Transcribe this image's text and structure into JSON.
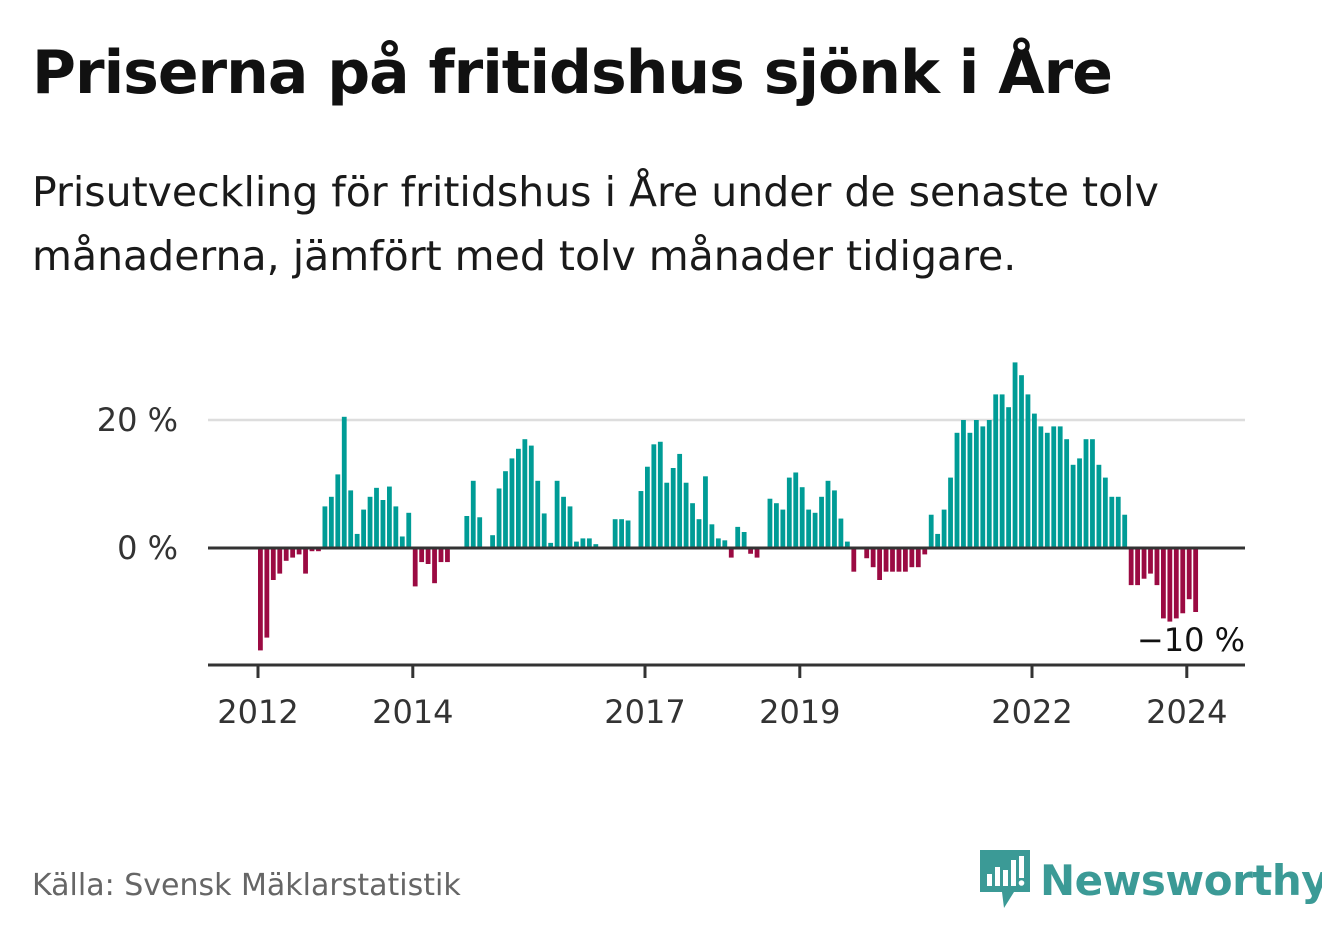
{
  "title": "Priserna på fritidshus sjönk i Åre",
  "subtitle": "Prisutveckling för fritidshus i Åre under de senaste tolv månaderna, jämfört med tolv månader tidigare.",
  "source": "Källa: Svensk Mäklarstatistik",
  "brand": "Newsworthy",
  "colors": {
    "positive": "#009c96",
    "negative": "#9b0a42",
    "grid": "#dddddd",
    "axis": "#333333",
    "brand": "#3b9a96"
  },
  "chart_data": {
    "type": "bar",
    "title": "Priserna på fritidshus sjönk i Åre",
    "xlabel": "",
    "ylabel": "",
    "ylim": [
      -18,
      30
    ],
    "y_ticks": [
      {
        "value": 0,
        "label": "0 %"
      },
      {
        "value": 20,
        "label": "20 %"
      }
    ],
    "x_ticks": [
      "2012",
      "2014",
      "2017",
      "2019",
      "2022",
      "2024"
    ],
    "start": {
      "year": 2012,
      "month": 1
    },
    "frequency": "monthly",
    "unit": "%",
    "last_value_label": "−10 %",
    "values": [
      -16,
      -14,
      -5,
      -4,
      -2,
      -1.5,
      -1,
      -4,
      -0.5,
      -0.5,
      6.5,
      8,
      11.5,
      20.5,
      9,
      2.2,
      6,
      8,
      9.4,
      7.5,
      9.6,
      6.5,
      1.8,
      5.5,
      -6,
      -2.2,
      -2.5,
      -5.5,
      -2.2,
      -2.2,
      0,
      0,
      5,
      10.5,
      4.8,
      0,
      2,
      9.3,
      12,
      14,
      15.5,
      17,
      16,
      10.5,
      5.4,
      0.8,
      10.5,
      8,
      6.5,
      1,
      1.5,
      1.5,
      0.6,
      0,
      0,
      4.5,
      4.5,
      4.3,
      0,
      8.9,
      12.7,
      16.2,
      16.6,
      10.2,
      12.5,
      14.7,
      10.2,
      7,
      4.5,
      11.2,
      3.7,
      1.5,
      1.2,
      -1.5,
      3.3,
      2.5,
      -0.9,
      -1.5,
      0,
      7.7,
      7,
      6,
      11,
      11.8,
      9.5,
      6,
      5.5,
      8,
      10.5,
      9,
      4.6,
      1,
      -3.7,
      0,
      -1.6,
      -3,
      -5,
      -3.7,
      -3.7,
      -3.7,
      -3.7,
      -3,
      -3,
      -1,
      5.2,
      2.2,
      6,
      11,
      18,
      20,
      18,
      20,
      19,
      20,
      24,
      24,
      22,
      29,
      27,
      24,
      21,
      19,
      18,
      19,
      19,
      17,
      13,
      14,
      17,
      17,
      13,
      11,
      8,
      8,
      5.2,
      -5.8,
      -5.8,
      -4.8,
      -4,
      -5.8,
      -11,
      -11.5,
      -11,
      -10.2,
      -8,
      -10
    ]
  }
}
